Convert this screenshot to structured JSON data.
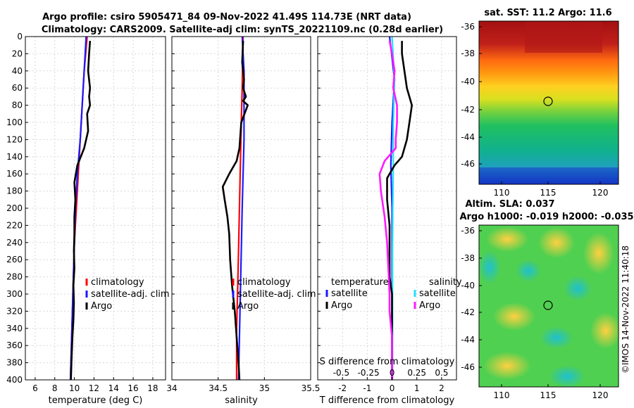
{
  "figure": {
    "title_line1": "Argo profile: csiro 5905471_84 09-Nov-2022 41.49S 114.73E (NRT data)",
    "title_line2": "Climatology: CARS2009. Satellite-adj clim: synTS_20221109.nc (0.28d earlier)",
    "watermark": "©IMOS 14-Nov-2022 11:40:18",
    "colors": {
      "climatology": "#ff0000",
      "satellite_clim": "#1a1aff",
      "argo": "#000000",
      "sat_temp": "#1a1aff",
      "sat_sal": "#22e0ff",
      "argo_sal": "#ff1aff"
    }
  },
  "chart_data": [
    {
      "type": "line",
      "id": "temperature",
      "xlabel": "temperature (deg C)",
      "xlim": [
        5,
        19.3
      ],
      "xticks": [
        6,
        8,
        10,
        12,
        14,
        16,
        18
      ],
      "ylim": [
        0,
        400
      ],
      "yticks": [
        0,
        20,
        40,
        60,
        80,
        100,
        120,
        140,
        160,
        180,
        200,
        220,
        240,
        260,
        280,
        300,
        320,
        340,
        360,
        380,
        400
      ],
      "legend": [
        "climatology",
        "satellite-adj. clim",
        "Argo"
      ],
      "series": [
        {
          "name": "climatology",
          "color": "#ff0000",
          "x": [
            11.3,
            11.0,
            10.8,
            10.6,
            10.4,
            10.2,
            10.0,
            9.9,
            9.8,
            9.7,
            9.6
          ],
          "y": [
            0,
            40,
            80,
            120,
            160,
            200,
            240,
            280,
            320,
            360,
            400
          ]
        },
        {
          "name": "satellite-adj. clim",
          "color": "#1a1aff",
          "x": [
            11.2,
            11.0,
            10.8,
            10.6,
            10.3,
            10.1,
            10.0,
            9.9,
            9.8,
            9.7,
            9.6
          ],
          "y": [
            0,
            40,
            80,
            120,
            160,
            200,
            240,
            280,
            320,
            360,
            400
          ]
        },
        {
          "name": "Argo",
          "color": "#000000",
          "x": [
            11.6,
            11.5,
            11.4,
            11.6,
            11.5,
            11.6,
            11.3,
            11.4,
            11.0,
            10.3,
            10.0,
            10.1,
            10.0,
            10.0,
            9.95,
            10.0,
            9.9,
            9.95,
            9.9,
            9.8,
            9.7,
            9.65
          ],
          "y": [
            5,
            20,
            40,
            60,
            70,
            80,
            90,
            110,
            130,
            150,
            170,
            190,
            210,
            230,
            250,
            270,
            290,
            310,
            330,
            350,
            380,
            400
          ]
        }
      ]
    },
    {
      "type": "line",
      "id": "salinity",
      "xlabel": "salinity",
      "xlim": [
        34,
        35.5
      ],
      "xticks": [
        34,
        34.5,
        35,
        35.5
      ],
      "ylim": [
        0,
        400
      ],
      "legend": [
        "climatology",
        "satellite-adj. clim",
        "Argo"
      ],
      "series": [
        {
          "name": "climatology",
          "color": "#ff0000",
          "x": [
            34.77,
            34.76,
            34.75,
            34.74,
            34.73,
            34.72,
            34.71,
            34.7,
            34.7,
            34.7
          ],
          "y": [
            0,
            60,
            100,
            150,
            200,
            250,
            300,
            340,
            370,
            400
          ]
        },
        {
          "name": "satellite-adj. clim",
          "color": "#1a1aff",
          "x": [
            34.76,
            34.78,
            34.78,
            34.78,
            34.77,
            34.76,
            34.75,
            34.74,
            34.73,
            34.72
          ],
          "y": [
            0,
            40,
            80,
            120,
            160,
            200,
            250,
            300,
            350,
            400
          ]
        },
        {
          "name": "Argo",
          "color": "#000000",
          "x": [
            34.77,
            34.76,
            34.78,
            34.77,
            34.8,
            34.77,
            34.82,
            34.75,
            34.73,
            34.7,
            34.62,
            34.55,
            34.57,
            34.6,
            34.62,
            34.63,
            34.65,
            34.68,
            34.7,
            34.72,
            34.73
          ],
          "y": [
            5,
            30,
            50,
            60,
            70,
            75,
            80,
            100,
            130,
            145,
            160,
            175,
            190,
            210,
            230,
            260,
            290,
            320,
            350,
            380,
            400
          ]
        }
      ]
    },
    {
      "type": "line",
      "id": "difference",
      "xlabel": "T difference from climatology",
      "x2label": "S difference from climatology",
      "xlim": [
        -3,
        2.6
      ],
      "xticks": [
        -2,
        -1,
        0,
        1,
        2
      ],
      "x2ticks": [
        "-0.5",
        "-0.25",
        "0",
        "0.25",
        "0.5"
      ],
      "ylim": [
        0,
        400
      ],
      "legend_left_title": "temperature",
      "legend_right_title": "salinity",
      "legend_left": [
        "satellite",
        "Argo"
      ],
      "legend_right": [
        "satellite",
        "Argo"
      ],
      "series": [
        {
          "name": "T satellite",
          "color": "#1a1aff",
          "x": [
            -0.1,
            0.1,
            0.0,
            -0.05,
            0.0,
            0.0,
            0.0,
            0.0,
            0.0,
            0.0
          ],
          "y": [
            0,
            50,
            100,
            150,
            200,
            250,
            300,
            350,
            380,
            400
          ]
        },
        {
          "name": "S satellite",
          "color": "#22e0ff",
          "x": [
            0.0,
            0.1,
            0.05,
            0.05,
            0.03,
            0.02,
            0.02,
            0.02,
            0.02,
            0.02
          ],
          "y": [
            0,
            50,
            100,
            150,
            200,
            250,
            300,
            350,
            380,
            400
          ]
        },
        {
          "name": "T Argo",
          "color": "#000000",
          "x": [
            0.4,
            0.4,
            0.5,
            0.6,
            0.8,
            0.7,
            0.6,
            0.4,
            0.1,
            -0.2,
            -0.2,
            -0.1,
            -0.1,
            -0.1,
            0.0,
            0.0,
            0.0,
            0.0,
            0.0
          ],
          "y": [
            5,
            20,
            40,
            60,
            80,
            100,
            120,
            140,
            150,
            165,
            190,
            220,
            250,
            280,
            300,
            320,
            350,
            380,
            400
          ]
        },
        {
          "name": "S Argo",
          "color": "#ff1aff",
          "x": [
            -0.1,
            0.0,
            0.1,
            0.05,
            0.2,
            0.2,
            0.15,
            0.15,
            -0.3,
            -0.5,
            -0.45,
            -0.3,
            -0.2,
            -0.15,
            -0.1,
            -0.1,
            0.0,
            0.0,
            0.0
          ],
          "y": [
            5,
            20,
            40,
            60,
            80,
            100,
            120,
            130,
            145,
            160,
            180,
            210,
            240,
            270,
            300,
            320,
            350,
            380,
            400
          ]
        }
      ]
    }
  ],
  "map_sst": {
    "title": "sat. SST: 11.2  Argo: 11.6",
    "yticks": [
      "-36",
      "-38",
      "-40",
      "-42",
      "-44",
      "-46"
    ],
    "xticks": [
      "110",
      "115",
      "120"
    ]
  },
  "map_sla": {
    "title_line1": "Altim. SLA: 0.037",
    "title_line2": "Argo h1000: -0.019 h2000: -0.035",
    "yticks": [
      "-36",
      "-38",
      "-40",
      "-42",
      "-44",
      "-46"
    ],
    "xticks": [
      "110",
      "115",
      "120"
    ]
  }
}
